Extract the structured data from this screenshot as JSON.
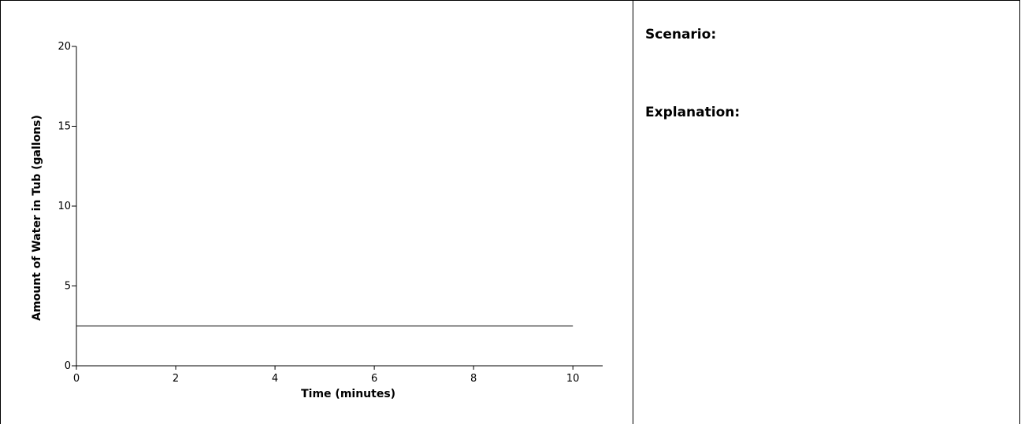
{
  "panel": {
    "scenario_label": "Scenario:",
    "explanation_label": "Explanation:"
  },
  "chart_data": {
    "type": "line",
    "title": "",
    "xlabel": "Time (minutes)",
    "ylabel": "Amount of Water in Tub (gallons)",
    "xlim": [
      0,
      10.6
    ],
    "ylim": [
      0,
      20
    ],
    "x_ticks": [
      0,
      2,
      4,
      6,
      8,
      10
    ],
    "y_ticks": [
      0,
      5,
      10,
      15,
      20
    ],
    "grid": false,
    "series": [
      {
        "x": [
          0,
          10
        ],
        "y": [
          2.5,
          2.5
        ]
      }
    ],
    "colors": {
      "line": "#000000",
      "axis": "#000000"
    }
  }
}
